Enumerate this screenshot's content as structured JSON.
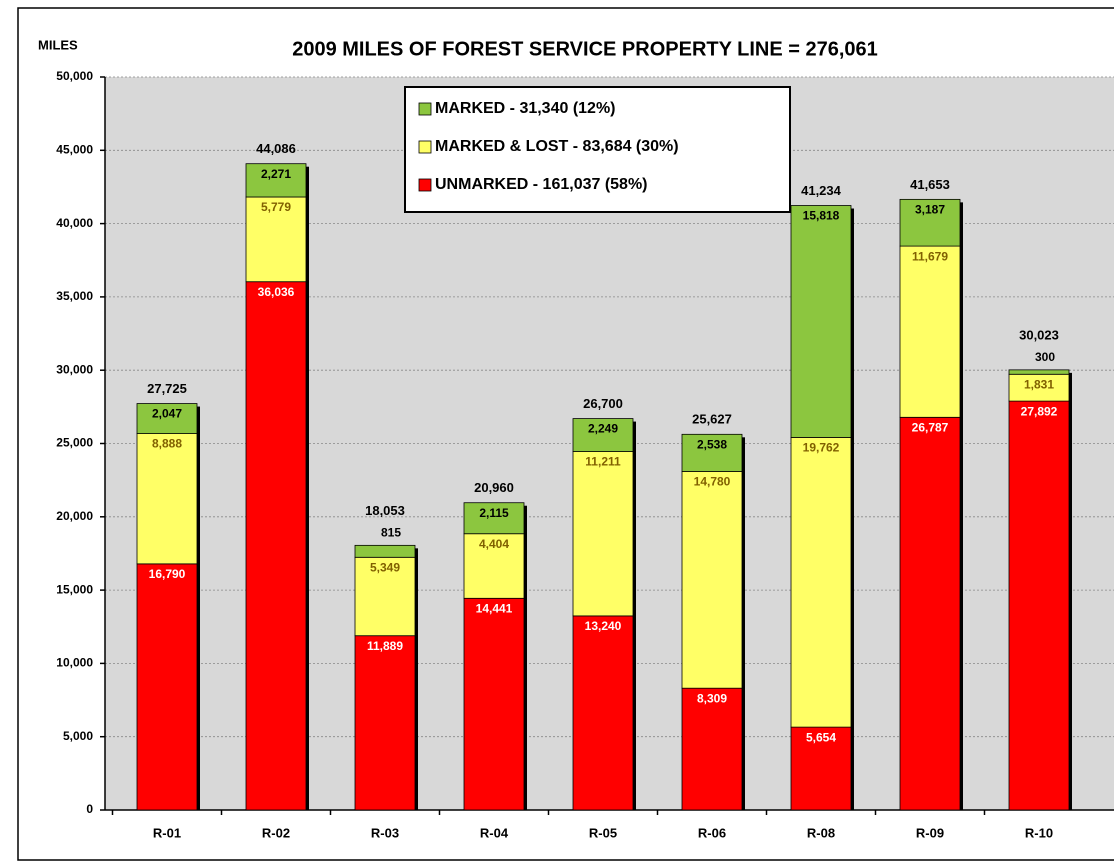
{
  "chart_data": {
    "type": "stacked_bar",
    "title": "2009 MILES OF FOREST SERVICE PROPERTY LINE = 276,061",
    "y_label": "MILES",
    "categories": [
      "R-01",
      "R-02",
      "R-03",
      "R-04",
      "R-05",
      "R-06",
      "R-08",
      "R-09",
      "R-10"
    ],
    "series": [
      {
        "name": "UNMARKED - 161,037 (58%)",
        "color": "#ff0000",
        "label_color": "#ffffff",
        "values": [
          16790,
          36036,
          11889,
          14441,
          13240,
          8309,
          5654,
          26787,
          27892
        ],
        "value_labels": [
          "16,790",
          "36,036",
          "11,889",
          "14,441",
          "13,240",
          "8,309",
          "5,654",
          "26,787",
          "27,892"
        ]
      },
      {
        "name": "MARKED & LOST - 83,684 (30%)",
        "color": "#ffff66",
        "label_color": "#806000",
        "values": [
          8888,
          5779,
          5349,
          4404,
          11211,
          14780,
          19762,
          11679,
          1831
        ],
        "value_labels": [
          "8,888",
          "5,779",
          "5,349",
          "4,404",
          "11,211",
          "14,780",
          "19,762",
          "11,679",
          "1,831"
        ]
      },
      {
        "name": "MARKED - 31,340 (12%)",
        "color": "#8cc63f",
        "label_color": "#000000",
        "values": [
          2047,
          2271,
          815,
          2115,
          2249,
          2538,
          15818,
          3187,
          300
        ],
        "value_labels": [
          "2,047",
          "2,271",
          "815",
          "2,115",
          "2,249",
          "2,538",
          "15,818",
          "3,187",
          "300"
        ]
      }
    ],
    "totals": [
      {
        "value": 27725,
        "label": "27,725"
      },
      {
        "value": 44086,
        "label": "44,086"
      },
      {
        "value": 18053,
        "label": "18,053"
      },
      {
        "value": 20960,
        "label": "20,960"
      },
      {
        "value": 26700,
        "label": "26,700"
      },
      {
        "value": 25627,
        "label": "25,627"
      },
      {
        "value": 41234,
        "label": "41,234"
      },
      {
        "value": 41653,
        "label": "41,653"
      },
      {
        "value": 30023,
        "label": "30,023"
      }
    ],
    "ylim": [
      0,
      50000
    ],
    "yticks": [
      0,
      {
        "value": 5000,
        "label": "5,000"
      },
      {
        "value": 10000,
        "label": "10,000"
      },
      {
        "value": 15000,
        "label": "15,000"
      },
      {
        "value": 20000,
        "label": "20,000"
      },
      {
        "value": 25000,
        "label": "25,000"
      },
      {
        "value": 30000,
        "label": "30,000"
      },
      {
        "value": 35000,
        "label": "35,000"
      },
      {
        "value": 40000,
        "label": "40,000"
      },
      {
        "value": 45000,
        "label": "45,000"
      },
      {
        "value": 50000,
        "label": "50,000"
      }
    ],
    "grid": true,
    "legend_position": "top"
  }
}
